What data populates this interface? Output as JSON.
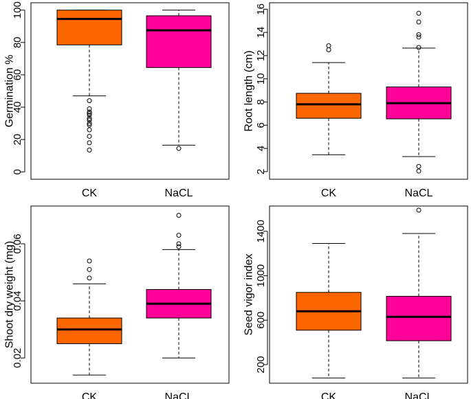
{
  "chart_data": [
    {
      "type": "boxplot",
      "ylabel": "Germination %",
      "yticks": [
        0,
        20,
        40,
        60,
        80,
        100
      ],
      "tick_labels": [
        "0",
        "20",
        "40",
        "60",
        "80",
        "100"
      ],
      "ylim": [
        -2,
        102
      ],
      "categories": [
        "CK",
        "NaCL"
      ],
      "boxes": [
        {
          "name": "CK",
          "color": "#FF6600",
          "whisker_low": 47,
          "q1": 78.5,
          "median": 94.5,
          "q3": 100,
          "whisker_high": 100,
          "outliers": [
            44,
            39,
            37,
            36,
            35,
            33,
            32,
            30,
            29,
            26,
            22,
            18,
            13.5
          ]
        },
        {
          "name": "NaCL",
          "color": "#FF0099",
          "whisker_low": 16.5,
          "q1": 64.5,
          "median": 87.5,
          "q3": 96.5,
          "whisker_high": 100,
          "outliers": [
            14.5
          ]
        }
      ]
    },
    {
      "type": "boxplot",
      "ylabel": "Root length (cm)",
      "yticks": [
        2,
        4,
        6,
        8,
        10,
        12,
        14,
        16
      ],
      "tick_labels": [
        "2",
        "4",
        "6",
        "8",
        "10",
        "12",
        "14",
        "16"
      ],
      "ylim": [
        1.7,
        16.2
      ],
      "categories": [
        "CK",
        "NaCL"
      ],
      "boxes": [
        {
          "name": "CK",
          "color": "#FF6600",
          "whisker_low": 3.45,
          "q1": 6.6,
          "median": 7.8,
          "q3": 8.75,
          "whisker_high": 11.4,
          "outliers": [
            12.5,
            12.85
          ]
        },
        {
          "name": "NaCL",
          "color": "#FF0099",
          "whisker_low": 3.3,
          "q1": 6.55,
          "median": 7.9,
          "q3": 9.3,
          "whisker_high": 12.65,
          "outliers": [
            12.7,
            13.6,
            13.8,
            14.9,
            15.65,
            2.45,
            2.05
          ]
        }
      ]
    },
    {
      "type": "boxplot",
      "ylabel": "Shoot dry weight (mg)",
      "yticks": [
        0.02,
        0.04,
        0.06
      ],
      "tick_labels": [
        "0.02",
        "0.04",
        "0.06"
      ],
      "ylim": [
        0.0126,
        0.0718
      ],
      "categories": [
        "CK",
        "NaCL"
      ],
      "boxes": [
        {
          "name": "CK",
          "color": "#FF6600",
          "whisker_low": 0.014,
          "q1": 0.025,
          "median": 0.03,
          "q3": 0.034,
          "whisker_high": 0.046,
          "outliers": [
            0.048,
            0.051,
            0.054
          ]
        },
        {
          "name": "NaCL",
          "color": "#FF0099",
          "whisker_low": 0.02,
          "q1": 0.034,
          "median": 0.039,
          "q3": 0.044,
          "whisker_high": 0.058,
          "outliers": [
            0.059,
            0.06,
            0.063,
            0.07
          ]
        }
      ]
    },
    {
      "type": "boxplot",
      "ylabel": "Seed vigor index",
      "yticks": [
        200,
        600,
        1000,
        1400
      ],
      "tick_labels": [
        "200",
        "600",
        "1000",
        "1400"
      ],
      "ylim": [
        70,
        1590
      ],
      "categories": [
        "CK",
        "NaCL"
      ],
      "boxes": [
        {
          "name": "CK",
          "color": "#FF6600",
          "whisker_low": 80,
          "q1": 510,
          "median": 680,
          "q3": 850,
          "whisker_high": 1290,
          "outliers": []
        },
        {
          "name": "NaCL",
          "color": "#FF0099",
          "whisker_low": 80,
          "q1": 415,
          "median": 630,
          "q3": 815,
          "whisker_high": 1380,
          "outliers": [
            1590
          ]
        }
      ]
    }
  ]
}
